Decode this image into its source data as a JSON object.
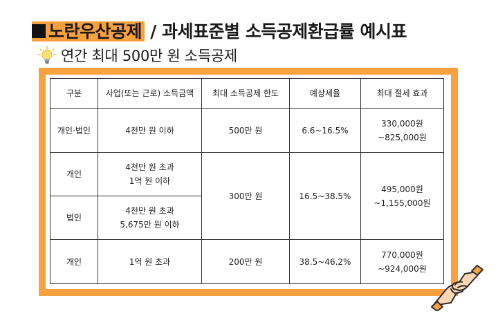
{
  "header": {
    "title_highlight": "노란우산공제",
    "title_rest": " / 과세표준별 소득공제환급률 예시표",
    "subtitle": "연간 최대 500만 원 소득공제"
  },
  "table": {
    "headers": [
      "구분",
      "사업(또는 근로) 소득금액",
      "최대 소득공제 한도",
      "예상세율",
      "최대 절세 효과"
    ],
    "rows": [
      {
        "category": "개인·법인",
        "income": [
          "4천만 원 이하"
        ],
        "limit": "500만 원",
        "rate": "6.6~16.5%",
        "saving": [
          "330,000원",
          "~825,000원"
        ]
      },
      {
        "category": "개인",
        "income": [
          "4천만 원 초과",
          "1억 원 이하"
        ],
        "limit": "300만 원",
        "rate": "16.5~38.5%",
        "saving": [
          "495,000원",
          "~1,155,000원"
        ]
      },
      {
        "category": "법인",
        "income": [
          "4천만 원 초과",
          "5,675만 원 이하"
        ]
      },
      {
        "category": "개인",
        "income": [
          "1억 원 초과"
        ],
        "limit": "200만 원",
        "rate": "38.5~46.2%",
        "saving": [
          "770,000원",
          "~924,000원"
        ]
      }
    ]
  },
  "colors": {
    "accent": "#f9a03f",
    "border": "#333333",
    "skin": "#fbd6b3"
  },
  "icons": {
    "bulb": "light-bulb-icon",
    "hands": "handshake-icon"
  }
}
